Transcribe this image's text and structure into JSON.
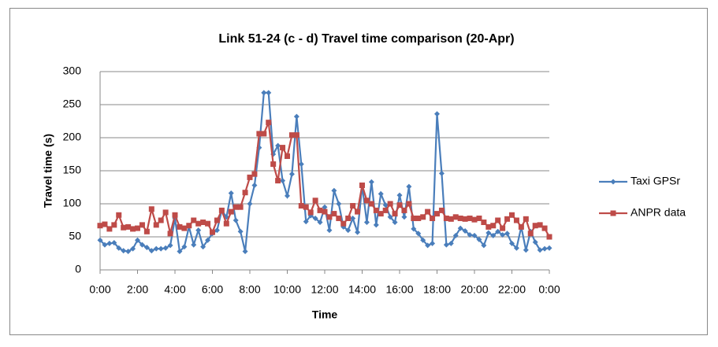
{
  "chart_data": {
    "type": "line",
    "title": "Link 51-24 (c - d) Travel time comparison (20-Apr)",
    "x_label": "Time",
    "y_label": "Travel time (s)",
    "x": [
      0,
      0.25,
      0.5,
      0.75,
      1,
      1.25,
      1.5,
      1.75,
      2,
      2.25,
      2.5,
      2.75,
      3,
      3.25,
      3.5,
      3.75,
      4,
      4.25,
      4.5,
      4.75,
      5,
      5.25,
      5.5,
      5.75,
      6,
      6.25,
      6.5,
      6.75,
      7,
      7.25,
      7.5,
      7.75,
      8,
      8.25,
      8.5,
      8.75,
      9,
      9.25,
      9.5,
      9.75,
      10,
      10.25,
      10.5,
      10.75,
      11,
      11.25,
      11.5,
      11.75,
      12,
      12.25,
      12.5,
      12.75,
      13,
      13.25,
      13.5,
      13.75,
      14,
      14.25,
      14.5,
      14.75,
      15,
      15.25,
      15.5,
      15.75,
      16,
      16.25,
      16.5,
      16.75,
      17,
      17.25,
      17.5,
      17.75,
      18,
      18.25,
      18.5,
      18.75,
      19,
      19.25,
      19.5,
      19.75,
      20,
      20.25,
      20.5,
      20.75,
      21,
      21.25,
      21.5,
      21.75,
      22,
      22.25,
      22.5,
      22.75,
      23,
      23.25,
      23.5,
      23.75,
      24
    ],
    "series": [
      {
        "name": "Taxi GPSr",
        "color": "#4a7ebb",
        "marker": "diamond",
        "values": [
          45,
          38,
          40,
          41,
          33,
          29,
          28,
          32,
          45,
          38,
          34,
          29,
          32,
          32,
          33,
          37,
          78,
          28,
          35,
          65,
          38,
          60,
          35,
          45,
          55,
          60,
          90,
          80,
          116,
          75,
          58,
          28,
          100,
          128,
          185,
          268,
          268,
          175,
          188,
          135,
          112,
          145,
          232,
          160,
          73,
          82,
          78,
          72,
          95,
          60,
          120,
          100,
          65,
          60,
          78,
          57,
          127,
          72,
          133,
          68,
          115,
          98,
          80,
          72,
          113,
          80,
          126,
          62,
          55,
          45,
          37,
          40,
          236,
          146,
          38,
          40,
          52,
          63,
          59,
          53,
          52,
          46,
          37,
          56,
          52,
          58,
          53,
          55,
          40,
          33,
          65,
          30,
          58,
          42,
          30,
          32,
          33
        ]
      },
      {
        "name": "ANPR data",
        "color": "#be4b48",
        "marker": "square",
        "values": [
          67,
          69,
          62,
          68,
          83,
          64,
          65,
          62,
          63,
          68,
          58,
          92,
          68,
          75,
          87,
          55,
          83,
          65,
          63,
          67,
          75,
          70,
          72,
          70,
          57,
          75,
          90,
          70,
          88,
          95,
          95,
          117,
          140,
          145,
          206,
          206,
          223,
          160,
          135,
          185,
          172,
          204,
          204,
          97,
          95,
          87,
          105,
          90,
          88,
          80,
          85,
          78,
          70,
          78,
          97,
          88,
          128,
          105,
          100,
          90,
          85,
          90,
          100,
          85,
          98,
          90,
          100,
          78,
          78,
          80,
          88,
          78,
          85,
          90,
          78,
          77,
          80,
          78,
          77,
          78,
          76,
          78,
          72,
          65,
          67,
          75,
          63,
          77,
          83,
          75,
          65,
          77,
          55,
          67,
          68,
          63,
          50
        ]
      }
    ],
    "xlim": [
      0,
      24
    ],
    "xticks": [
      {
        "value": 0,
        "label": "0:00"
      },
      {
        "value": 2,
        "label": "2:00"
      },
      {
        "value": 4,
        "label": "4:00"
      },
      {
        "value": 6,
        "label": "6:00"
      },
      {
        "value": 8,
        "label": "8:00"
      },
      {
        "value": 10,
        "label": "10:00"
      },
      {
        "value": 12,
        "label": "12:00"
      },
      {
        "value": 14,
        "label": "14:00"
      },
      {
        "value": 16,
        "label": "16:00"
      },
      {
        "value": 18,
        "label": "18:00"
      },
      {
        "value": 20,
        "label": "20:00"
      },
      {
        "value": 22,
        "label": "22:00"
      },
      {
        "value": 24,
        "label": "0:00"
      }
    ],
    "ylim": [
      0,
      300
    ],
    "yticks": [
      0,
      50,
      100,
      150,
      200,
      250,
      300
    ],
    "grid": true,
    "legend": "right"
  }
}
